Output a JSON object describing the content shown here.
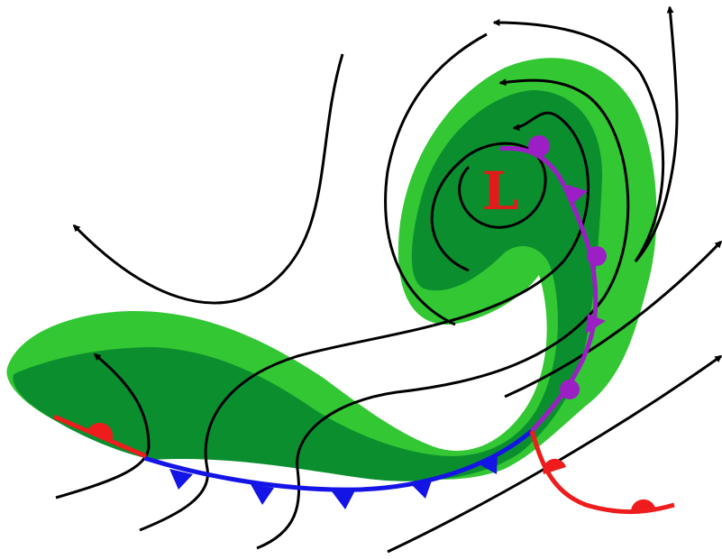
{
  "low_label": "L",
  "colors": {
    "precip_light": "#33c733",
    "precip_dark": "#0b8f2e",
    "warm_front": "#ee1c1c",
    "cold_front": "#1414e6",
    "occluded_front": "#9b1fc4",
    "flow": "#000000",
    "label": "#e01b1b"
  },
  "icons": [
    "cyclone-low-symbol",
    "flow-arrowhead",
    "warm-front-semicircle",
    "cold-front-triangle",
    "occluded-front-symbol"
  ]
}
